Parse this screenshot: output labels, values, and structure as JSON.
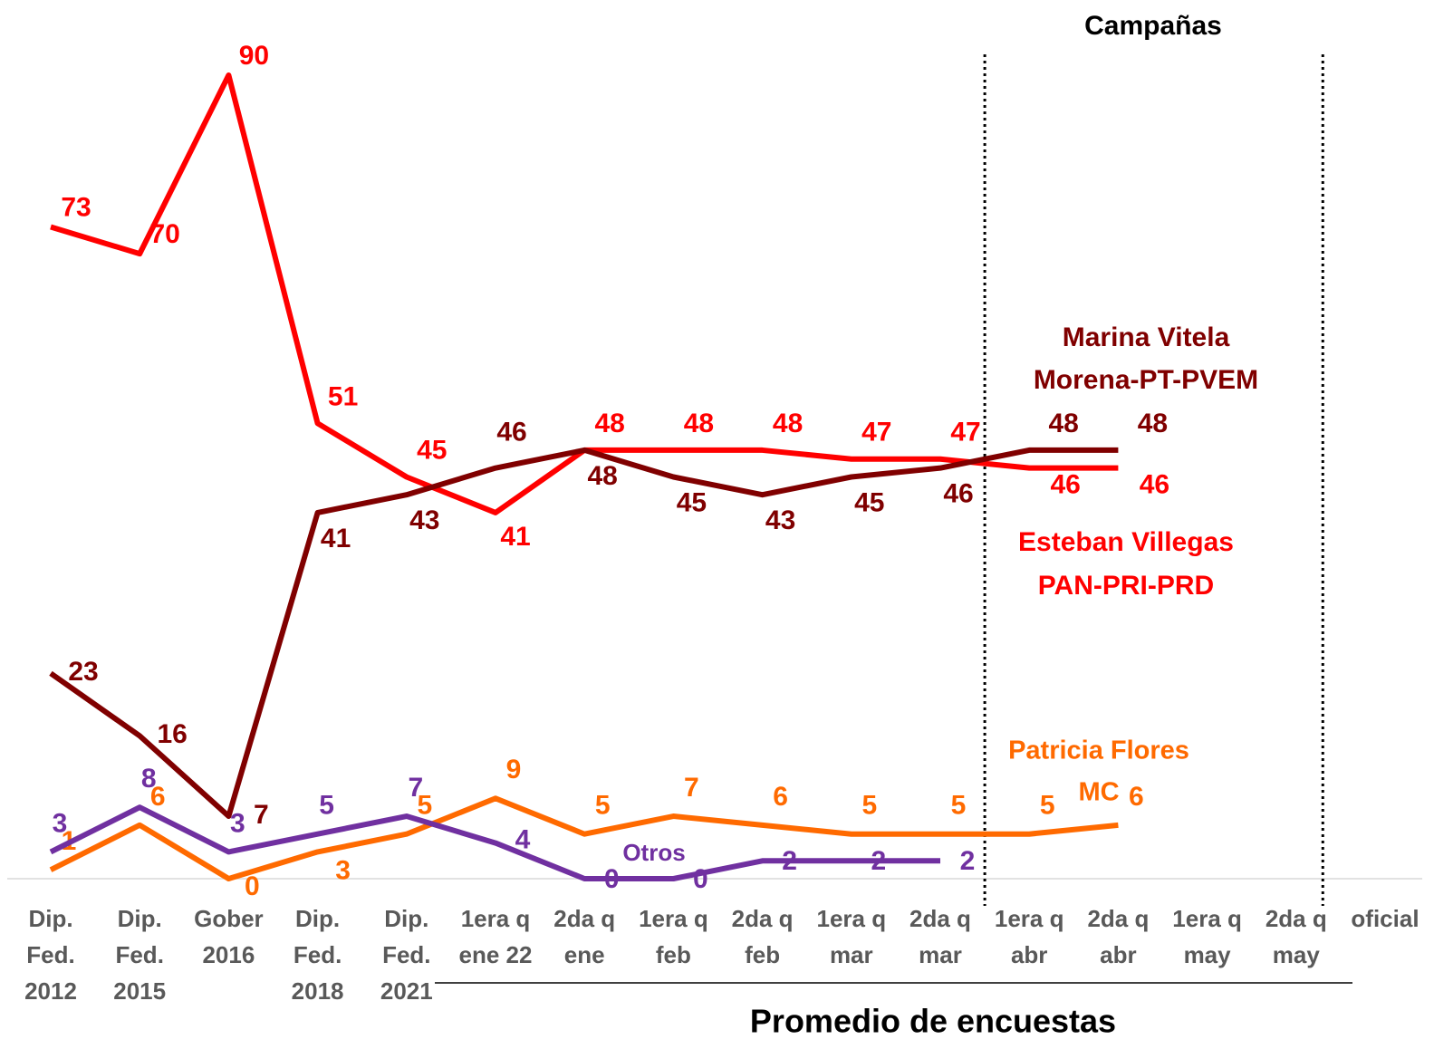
{
  "chart_data": {
    "type": "line",
    "title": "Campañas",
    "x_group_label": "Promedio de encuestas",
    "categories": [
      [
        "Dip.",
        "Fed.",
        "2012"
      ],
      [
        "Dip.",
        "Fed.",
        "2015"
      ],
      [
        "Gober",
        "2016"
      ],
      [
        "Dip.",
        "Fed.",
        "2018"
      ],
      [
        "Dip.",
        "Fed.",
        "2021"
      ],
      [
        "1era q",
        "ene 22"
      ],
      [
        "2da q",
        "ene"
      ],
      [
        "1era q",
        "feb"
      ],
      [
        "2da q",
        "feb"
      ],
      [
        "1era q",
        "mar"
      ],
      [
        "2da q",
        "mar"
      ],
      [
        "1era q",
        "abr"
      ],
      [
        "2da q",
        "abr"
      ],
      [
        "1era q",
        "may"
      ],
      [
        "2da q",
        "may"
      ],
      [
        "oficial"
      ]
    ],
    "ylim": [
      0,
      90
    ],
    "series": [
      {
        "name": "Esteban Villegas",
        "party": "PAN-PRI-PRD",
        "color": "#ff0000",
        "values": [
          73,
          70,
          90,
          51,
          45,
          41,
          48,
          48,
          48,
          47,
          47,
          46,
          46,
          null,
          null,
          null
        ]
      },
      {
        "name": "Marina Vitela",
        "party": "Morena-PT-PVEM",
        "color": "#800000",
        "values": [
          23,
          16,
          7,
          41,
          43,
          46,
          48,
          45,
          43,
          45,
          46,
          48,
          48,
          null,
          null,
          null
        ]
      },
      {
        "name": "Patricia Flores",
        "party": "MC",
        "color": "#ff6a00",
        "values": [
          1,
          6,
          0,
          3,
          5,
          9,
          5,
          7,
          6,
          5,
          5,
          5,
          6,
          null,
          null,
          null
        ]
      },
      {
        "name": "Otros",
        "color": "#7030a0",
        "values": [
          3,
          8,
          3,
          5,
          7,
          4,
          0,
          0,
          2,
          2,
          2,
          null,
          null,
          null,
          null,
          null
        ]
      }
    ]
  }
}
